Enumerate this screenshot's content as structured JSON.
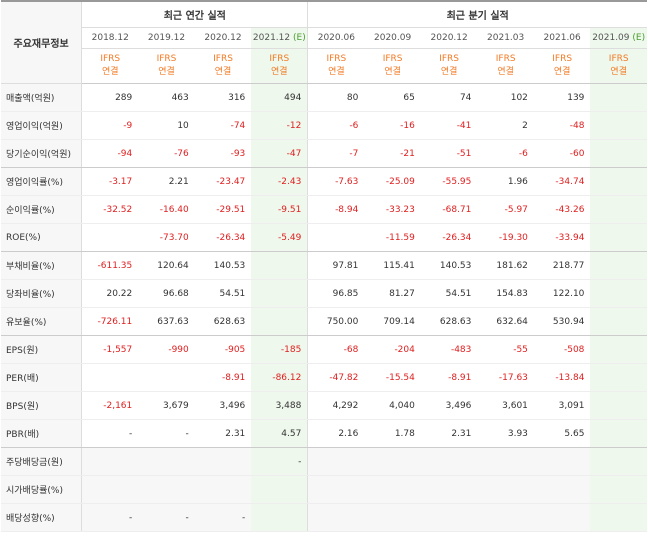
{
  "header": {
    "row_label": "주요재무정보",
    "annual_group": "최근 연간 실적",
    "quarter_group": "최근 분기 실적",
    "estimate_mark": "(E)"
  },
  "periods": [
    {
      "label": "2018.12",
      "estimate": false
    },
    {
      "label": "2019.12",
      "estimate": false
    },
    {
      "label": "2020.12",
      "estimate": false
    },
    {
      "label": "2021.12",
      "estimate": true
    },
    {
      "label": "2020.06",
      "estimate": false
    },
    {
      "label": "2020.09",
      "estimate": false
    },
    {
      "label": "2020.12",
      "estimate": false
    },
    {
      "label": "2021.03",
      "estimate": false
    },
    {
      "label": "2021.06",
      "estimate": false
    },
    {
      "label": "2021.09",
      "estimate": true
    }
  ],
  "ifrs": {
    "line1": "IFRS",
    "line2": "연결"
  },
  "rows": [
    {
      "label": "매출액(억원)",
      "values": [
        "289",
        "463",
        "316",
        "494",
        "80",
        "65",
        "74",
        "102",
        "139",
        ""
      ]
    },
    {
      "label": "영업이익(억원)",
      "values": [
        "-9",
        "10",
        "-74",
        "-12",
        "-6",
        "-16",
        "-41",
        "2",
        "-48",
        ""
      ]
    },
    {
      "label": "당기순이익(억원)",
      "values": [
        "-94",
        "-76",
        "-93",
        "-47",
        "-7",
        "-21",
        "-51",
        "-6",
        "-60",
        ""
      ]
    },
    {
      "label": "영업이익률(%)",
      "values": [
        "-3.17",
        "2.21",
        "-23.47",
        "-2.43",
        "-7.63",
        "-25.09",
        "-55.95",
        "1.96",
        "-34.74",
        ""
      ]
    },
    {
      "label": "순이익률(%)",
      "values": [
        "-32.52",
        "-16.40",
        "-29.51",
        "-9.51",
        "-8.94",
        "-33.23",
        "-68.71",
        "-5.97",
        "-43.26",
        ""
      ]
    },
    {
      "label": "ROE(%)",
      "values": [
        "",
        "-73.70",
        "-26.34",
        "-5.49",
        "",
        "-11.59",
        "-26.34",
        "-19.30",
        "-33.94",
        ""
      ]
    },
    {
      "label": "부채비율(%)",
      "values": [
        "-611.35",
        "120.64",
        "140.53",
        "",
        "97.81",
        "115.41",
        "140.53",
        "181.62",
        "218.77",
        ""
      ]
    },
    {
      "label": "당좌비율(%)",
      "values": [
        "20.22",
        "96.68",
        "54.51",
        "",
        "96.85",
        "81.27",
        "54.51",
        "154.83",
        "122.10",
        ""
      ]
    },
    {
      "label": "유보율(%)",
      "values": [
        "-726.11",
        "637.63",
        "628.63",
        "",
        "750.00",
        "709.14",
        "628.63",
        "632.64",
        "530.94",
        ""
      ]
    },
    {
      "label": "EPS(원)",
      "values": [
        "-1,557",
        "-990",
        "-905",
        "-185",
        "-68",
        "-204",
        "-483",
        "-55",
        "-508",
        ""
      ]
    },
    {
      "label": "PER(배)",
      "values": [
        "",
        "",
        "-8.91",
        "-86.12",
        "-47.82",
        "-15.54",
        "-8.91",
        "-17.63",
        "-13.84",
        ""
      ]
    },
    {
      "label": "BPS(원)",
      "values": [
        "-2,161",
        "3,679",
        "3,496",
        "3,488",
        "4,292",
        "4,040",
        "3,496",
        "3,601",
        "3,091",
        ""
      ]
    },
    {
      "label": "PBR(배)",
      "values": [
        "-",
        "-",
        "2.31",
        "4.57",
        "2.16",
        "1.78",
        "2.31",
        "3.93",
        "5.65",
        ""
      ]
    },
    {
      "label": "주당배당금(원)",
      "values": [
        "",
        "",
        "",
        "-",
        "",
        "",
        "",
        "",
        "",
        ""
      ]
    },
    {
      "label": "시가배당률(%)",
      "values": [
        "",
        "",
        "",
        "",
        "",
        "",
        "",
        "",
        "",
        ""
      ]
    },
    {
      "label": "배당성향(%)",
      "values": [
        "-",
        "-",
        "-",
        "",
        "",
        "",
        "",
        "",
        "",
        ""
      ]
    }
  ],
  "colors": {
    "negative": "#e02020",
    "ifrs": "#f27b26",
    "estimate": "#4a9e2e",
    "highlight": "#eef8ec"
  }
}
